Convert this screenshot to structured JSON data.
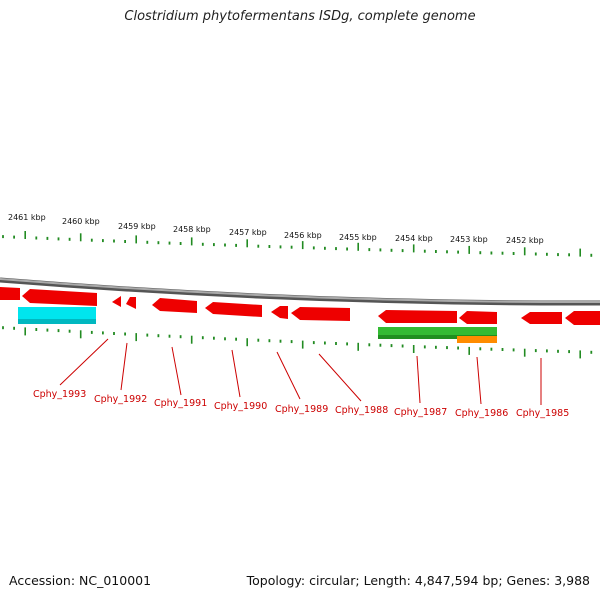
{
  "title": "Clostridium phytofermentans ISDg, complete genome",
  "footer": {
    "accession": "Accession: NC_010001",
    "topology": "Topology: circular; Length: 4,847,594 bp; Genes: 3,988"
  },
  "scale_labels": [
    "2461 kbp",
    "2460 kbp",
    "2459 kbp",
    "2458 kbp",
    "2457 kbp",
    "2456 kbp",
    "2455 kbp",
    "2454 kbp",
    "2453 kbp",
    "2452 kbp"
  ],
  "gene_labels": [
    "Cphy_1993",
    "Cphy_1992",
    "Cphy_1991",
    "Cphy_1990",
    "Cphy_1989",
    "Cphy_1988",
    "Cphy_1987",
    "Cphy_1986",
    "Cphy_1985"
  ],
  "colors": {
    "gene": "#ee0000",
    "gene_dark": "#b30000",
    "label": "#cc0000",
    "tick": "#228b22",
    "backbone": "#888888",
    "cyan_feature": "#00e5ee",
    "green_feature": "#33bb33",
    "orange_feature": "#ff8c00"
  }
}
